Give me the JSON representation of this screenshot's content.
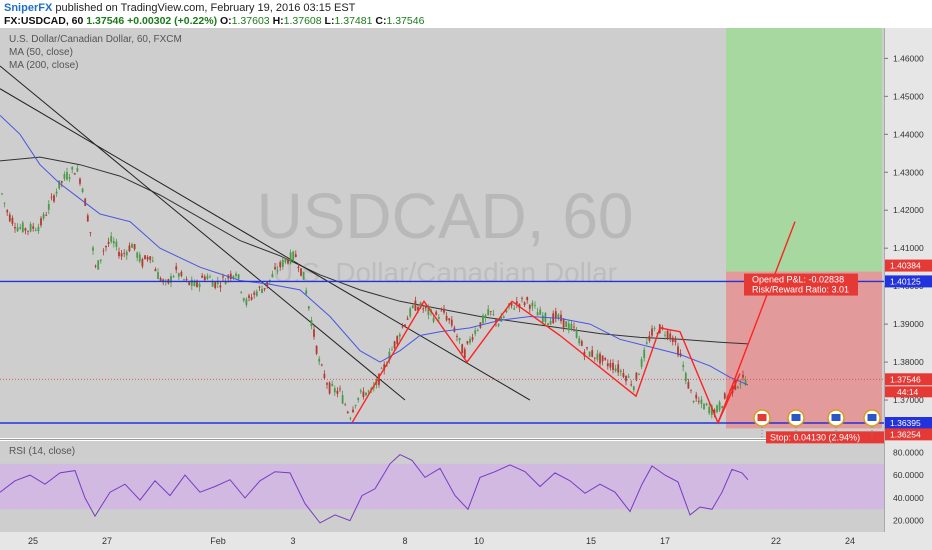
{
  "header": {
    "author": "SniperFX",
    "published": "published on TradingView.com, February 19, 2016 03:15 EST",
    "symbol": "FX:USDCAD, 60",
    "last": "1.37546",
    "change": "+0.00302 (+0.22%)",
    "open_label": "O:",
    "open": "1.37603",
    "high_label": "H:",
    "high": "1.37608",
    "low_label": "L:",
    "low": "1.37481",
    "close_label": "C:",
    "close": "1.37546"
  },
  "legend": {
    "instrument": "U.S. Dollar/Canadian Dollar, 60, FXCM",
    "ma50": "MA (50, close)",
    "ma200": "MA (200, close)",
    "rsi": "RSI (14, close)"
  },
  "watermark": {
    "symbol": "USDCAD, 60",
    "name": "U.S. Dollar/Canadian Dollar"
  },
  "colors": {
    "background": "#cecece",
    "axis_bg": "#e6e6e6",
    "up_candle": "#4a9a4a",
    "down_candle": "#b03a2e",
    "ma50": "#4a55e0",
    "ma200": "#333333",
    "support_line": "#2233dd",
    "zigzag": "#ff2222",
    "profit_zone": "#a6d8a0",
    "loss_zone": "#e39a9a",
    "rsi_line": "#7a3ac4",
    "rsi_band": "#d2b7e3"
  },
  "price_axis": {
    "ticks": [
      "1.46000",
      "1.45000",
      "1.44000",
      "1.43000",
      "1.42000",
      "1.41000",
      "1.40000",
      "1.39000",
      "1.38000",
      "1.37000"
    ],
    "labels": {
      "target": "1.40384",
      "upper_line": "1.40125",
      "current": "1.37546",
      "countdown": "44:14",
      "lower_line": "1.36395",
      "stop": "1.36254"
    }
  },
  "rsi_axis": {
    "ticks": [
      "80.0000",
      "60.0000",
      "40.0000",
      "20.0000"
    ]
  },
  "time_axis": {
    "labels": [
      "25",
      "27",
      "Feb",
      "3",
      "8",
      "10",
      "15",
      "17",
      "22",
      "24"
    ]
  },
  "position": {
    "pnl_label": "Opened P&L: -0.02838",
    "ratio_label": "Risk/Reward Ratio: 3.01",
    "stop_label": "Stop: 0.04130 (2.94%)"
  },
  "chart_data": {
    "type": "candlestick",
    "title": "U.S. Dollar/Canadian Dollar, 60, FXCM",
    "symbol": "USDCAD",
    "interval": "60",
    "ylim": [
      1.36,
      1.468
    ],
    "levels": {
      "upper_horizontal": 1.40125,
      "lower_horizontal": 1.36395,
      "take_profit": 1.40384,
      "entry": 1.37546,
      "stop_loss": 1.36254
    },
    "close_path": [
      {
        "x": 0,
        "y": 1.426
      },
      {
        "x": 8,
        "y": 1.419
      },
      {
        "x": 18,
        "y": 1.4155
      },
      {
        "x": 28,
        "y": 1.415
      },
      {
        "x": 40,
        "y": 1.416
      },
      {
        "x": 50,
        "y": 1.4215
      },
      {
        "x": 58,
        "y": 1.426
      },
      {
        "x": 66,
        "y": 1.429
      },
      {
        "x": 76,
        "y": 1.431
      },
      {
        "x": 82,
        "y": 1.427
      },
      {
        "x": 90,
        "y": 1.415
      },
      {
        "x": 96,
        "y": 1.404
      },
      {
        "x": 104,
        "y": 1.41
      },
      {
        "x": 112,
        "y": 1.412
      },
      {
        "x": 122,
        "y": 1.408
      },
      {
        "x": 132,
        "y": 1.411
      },
      {
        "x": 142,
        "y": 1.406
      },
      {
        "x": 150,
        "y": 1.4085
      },
      {
        "x": 158,
        "y": 1.403
      },
      {
        "x": 166,
        "y": 1.4
      },
      {
        "x": 176,
        "y": 1.404
      },
      {
        "x": 186,
        "y": 1.401
      },
      {
        "x": 196,
        "y": 1.4
      },
      {
        "x": 206,
        "y": 1.403
      },
      {
        "x": 216,
        "y": 1.4005
      },
      {
        "x": 226,
        "y": 1.402
      },
      {
        "x": 236,
        "y": 1.404
      },
      {
        "x": 246,
        "y": 1.3955
      },
      {
        "x": 256,
        "y": 1.3985
      },
      {
        "x": 266,
        "y": 1.4
      },
      {
        "x": 276,
        "y": 1.404
      },
      {
        "x": 286,
        "y": 1.407
      },
      {
        "x": 296,
        "y": 1.408
      },
      {
        "x": 304,
        "y": 1.402
      },
      {
        "x": 312,
        "y": 1.39
      },
      {
        "x": 320,
        "y": 1.379
      },
      {
        "x": 330,
        "y": 1.373
      },
      {
        "x": 340,
        "y": 1.372
      },
      {
        "x": 350,
        "y": 1.366
      },
      {
        "x": 356,
        "y": 1.37
      },
      {
        "x": 364,
        "y": 1.372
      },
      {
        "x": 372,
        "y": 1.372
      },
      {
        "x": 380,
        "y": 1.376
      },
      {
        "x": 390,
        "y": 1.382
      },
      {
        "x": 400,
        "y": 1.388
      },
      {
        "x": 408,
        "y": 1.392
      },
      {
        "x": 416,
        "y": 1.395
      },
      {
        "x": 424,
        "y": 1.394
      },
      {
        "x": 434,
        "y": 1.392
      },
      {
        "x": 444,
        "y": 1.393
      },
      {
        "x": 454,
        "y": 1.389
      },
      {
        "x": 464,
        "y": 1.382
      },
      {
        "x": 472,
        "y": 1.387
      },
      {
        "x": 480,
        "y": 1.39
      },
      {
        "x": 490,
        "y": 1.393
      },
      {
        "x": 500,
        "y": 1.39
      },
      {
        "x": 508,
        "y": 1.394
      },
      {
        "x": 518,
        "y": 1.3955
      },
      {
        "x": 528,
        "y": 1.396
      },
      {
        "x": 538,
        "y": 1.393
      },
      {
        "x": 548,
        "y": 1.391
      },
      {
        "x": 556,
        "y": 1.392
      },
      {
        "x": 566,
        "y": 1.39
      },
      {
        "x": 576,
        "y": 1.388
      },
      {
        "x": 584,
        "y": 1.383
      },
      {
        "x": 594,
        "y": 1.382
      },
      {
        "x": 604,
        "y": 1.38
      },
      {
        "x": 614,
        "y": 1.379
      },
      {
        "x": 624,
        "y": 1.377
      },
      {
        "x": 634,
        "y": 1.374
      },
      {
        "x": 642,
        "y": 1.38
      },
      {
        "x": 650,
        "y": 1.387
      },
      {
        "x": 658,
        "y": 1.389
      },
      {
        "x": 666,
        "y": 1.388
      },
      {
        "x": 672,
        "y": 1.387
      },
      {
        "x": 680,
        "y": 1.382
      },
      {
        "x": 686,
        "y": 1.376
      },
      {
        "x": 692,
        "y": 1.371
      },
      {
        "x": 700,
        "y": 1.369
      },
      {
        "x": 708,
        "y": 1.368
      },
      {
        "x": 716,
        "y": 1.367
      },
      {
        "x": 724,
        "y": 1.37
      },
      {
        "x": 732,
        "y": 1.373
      },
      {
        "x": 740,
        "y": 1.375
      },
      {
        "x": 748,
        "y": 1.3755
      }
    ],
    "series": [
      {
        "name": "MA (50, close)",
        "path": [
          {
            "x": 0,
            "y": 1.445
          },
          {
            "x": 20,
            "y": 1.44
          },
          {
            "x": 40,
            "y": 1.432
          },
          {
            "x": 60,
            "y": 1.427
          },
          {
            "x": 80,
            "y": 1.423
          },
          {
            "x": 100,
            "y": 1.419
          },
          {
            "x": 130,
            "y": 1.417
          },
          {
            "x": 160,
            "y": 1.41
          },
          {
            "x": 200,
            "y": 1.405
          },
          {
            "x": 240,
            "y": 1.4015
          },
          {
            "x": 270,
            "y": 1.4005
          },
          {
            "x": 300,
            "y": 1.399
          },
          {
            "x": 330,
            "y": 1.392
          },
          {
            "x": 360,
            "y": 1.383
          },
          {
            "x": 380,
            "y": 1.38
          },
          {
            "x": 400,
            "y": 1.383
          },
          {
            "x": 420,
            "y": 1.387
          },
          {
            "x": 440,
            "y": 1.388
          },
          {
            "x": 470,
            "y": 1.389
          },
          {
            "x": 500,
            "y": 1.391
          },
          {
            "x": 530,
            "y": 1.392
          },
          {
            "x": 560,
            "y": 1.3915
          },
          {
            "x": 590,
            "y": 1.39
          },
          {
            "x": 620,
            "y": 1.386
          },
          {
            "x": 650,
            "y": 1.384
          },
          {
            "x": 680,
            "y": 1.382
          },
          {
            "x": 710,
            "y": 1.379
          },
          {
            "x": 730,
            "y": 1.376
          },
          {
            "x": 748,
            "y": 1.374
          }
        ]
      },
      {
        "name": "MA (200, close)",
        "path": [
          {
            "x": 0,
            "y": 1.433
          },
          {
            "x": 40,
            "y": 1.434
          },
          {
            "x": 80,
            "y": 1.432
          },
          {
            "x": 120,
            "y": 1.429
          },
          {
            "x": 160,
            "y": 1.424
          },
          {
            "x": 200,
            "y": 1.418
          },
          {
            "x": 240,
            "y": 1.412
          },
          {
            "x": 280,
            "y": 1.408
          },
          {
            "x": 320,
            "y": 1.403
          },
          {
            "x": 360,
            "y": 1.399
          },
          {
            "x": 400,
            "y": 1.396
          },
          {
            "x": 440,
            "y": 1.394
          },
          {
            "x": 480,
            "y": 1.392
          },
          {
            "x": 520,
            "y": 1.3905
          },
          {
            "x": 560,
            "y": 1.389
          },
          {
            "x": 600,
            "y": 1.3875
          },
          {
            "x": 640,
            "y": 1.3865
          },
          {
            "x": 680,
            "y": 1.386
          },
          {
            "x": 720,
            "y": 1.3852
          },
          {
            "x": 748,
            "y": 1.3848
          }
        ]
      }
    ],
    "trendlines": [
      {
        "from": {
          "x": 0,
          "y": 1.458
        },
        "to": {
          "x": 405,
          "y": 1.37
        }
      },
      {
        "from": {
          "x": 0,
          "y": 1.452
        },
        "to": {
          "x": 530,
          "y": 1.37
        }
      }
    ],
    "zigzag": [
      {
        "x": 352,
        "y": 1.364
      },
      {
        "x": 424,
        "y": 1.396
      },
      {
        "x": 467,
        "y": 1.38
      },
      {
        "x": 512,
        "y": 1.396
      },
      {
        "x": 560,
        "y": 1.387
      },
      {
        "x": 636,
        "y": 1.371
      },
      {
        "x": 660,
        "y": 1.389
      },
      {
        "x": 680,
        "y": 1.388
      },
      {
        "x": 718,
        "y": 1.364
      },
      {
        "x": 740,
        "y": 1.377
      }
    ],
    "projection": [
      {
        "x": 718,
        "y": 1.364
      },
      {
        "x": 795,
        "y": 1.417
      }
    ],
    "rsi": {
      "name": "RSI (14, close)",
      "ylim": [
        10,
        90
      ],
      "band": [
        30,
        70
      ],
      "path": [
        {
          "x": 0,
          "y": 45
        },
        {
          "x": 15,
          "y": 55
        },
        {
          "x": 30,
          "y": 60
        },
        {
          "x": 45,
          "y": 52
        },
        {
          "x": 60,
          "y": 62
        },
        {
          "x": 75,
          "y": 64
        },
        {
          "x": 85,
          "y": 40
        },
        {
          "x": 95,
          "y": 24
        },
        {
          "x": 110,
          "y": 45
        },
        {
          "x": 125,
          "y": 52
        },
        {
          "x": 140,
          "y": 38
        },
        {
          "x": 155,
          "y": 55
        },
        {
          "x": 170,
          "y": 42
        },
        {
          "x": 185,
          "y": 60
        },
        {
          "x": 200,
          "y": 45
        },
        {
          "x": 215,
          "y": 50
        },
        {
          "x": 230,
          "y": 56
        },
        {
          "x": 245,
          "y": 40
        },
        {
          "x": 260,
          "y": 55
        },
        {
          "x": 275,
          "y": 63
        },
        {
          "x": 290,
          "y": 62
        },
        {
          "x": 305,
          "y": 35
        },
        {
          "x": 320,
          "y": 18
        },
        {
          "x": 335,
          "y": 25
        },
        {
          "x": 350,
          "y": 20
        },
        {
          "x": 362,
          "y": 42
        },
        {
          "x": 375,
          "y": 48
        },
        {
          "x": 390,
          "y": 70
        },
        {
          "x": 400,
          "y": 78
        },
        {
          "x": 412,
          "y": 73
        },
        {
          "x": 425,
          "y": 58
        },
        {
          "x": 440,
          "y": 66
        },
        {
          "x": 455,
          "y": 42
        },
        {
          "x": 468,
          "y": 30
        },
        {
          "x": 480,
          "y": 58
        },
        {
          "x": 495,
          "y": 63
        },
        {
          "x": 510,
          "y": 69
        },
        {
          "x": 525,
          "y": 63
        },
        {
          "x": 540,
          "y": 50
        },
        {
          "x": 555,
          "y": 62
        },
        {
          "x": 570,
          "y": 55
        },
        {
          "x": 585,
          "y": 44
        },
        {
          "x": 600,
          "y": 52
        },
        {
          "x": 615,
          "y": 45
        },
        {
          "x": 630,
          "y": 28
        },
        {
          "x": 642,
          "y": 52
        },
        {
          "x": 652,
          "y": 68
        },
        {
          "x": 665,
          "y": 60
        },
        {
          "x": 678,
          "y": 54
        },
        {
          "x": 690,
          "y": 25
        },
        {
          "x": 700,
          "y": 32
        },
        {
          "x": 712,
          "y": 30
        },
        {
          "x": 722,
          "y": 45
        },
        {
          "x": 732,
          "y": 65
        },
        {
          "x": 742,
          "y": 62
        },
        {
          "x": 748,
          "y": 56
        }
      ]
    },
    "x_labels": [
      {
        "label": "25",
        "x": 33
      },
      {
        "label": "27",
        "x": 107
      },
      {
        "label": "Feb",
        "x": 218
      },
      {
        "label": "3",
        "x": 293
      },
      {
        "label": "8",
        "x": 405
      },
      {
        "label": "10",
        "x": 479
      },
      {
        "label": "15",
        "x": 591
      },
      {
        "label": "17",
        "x": 665
      },
      {
        "label": "22",
        "x": 776
      },
      {
        "label": "24",
        "x": 850
      }
    ]
  }
}
